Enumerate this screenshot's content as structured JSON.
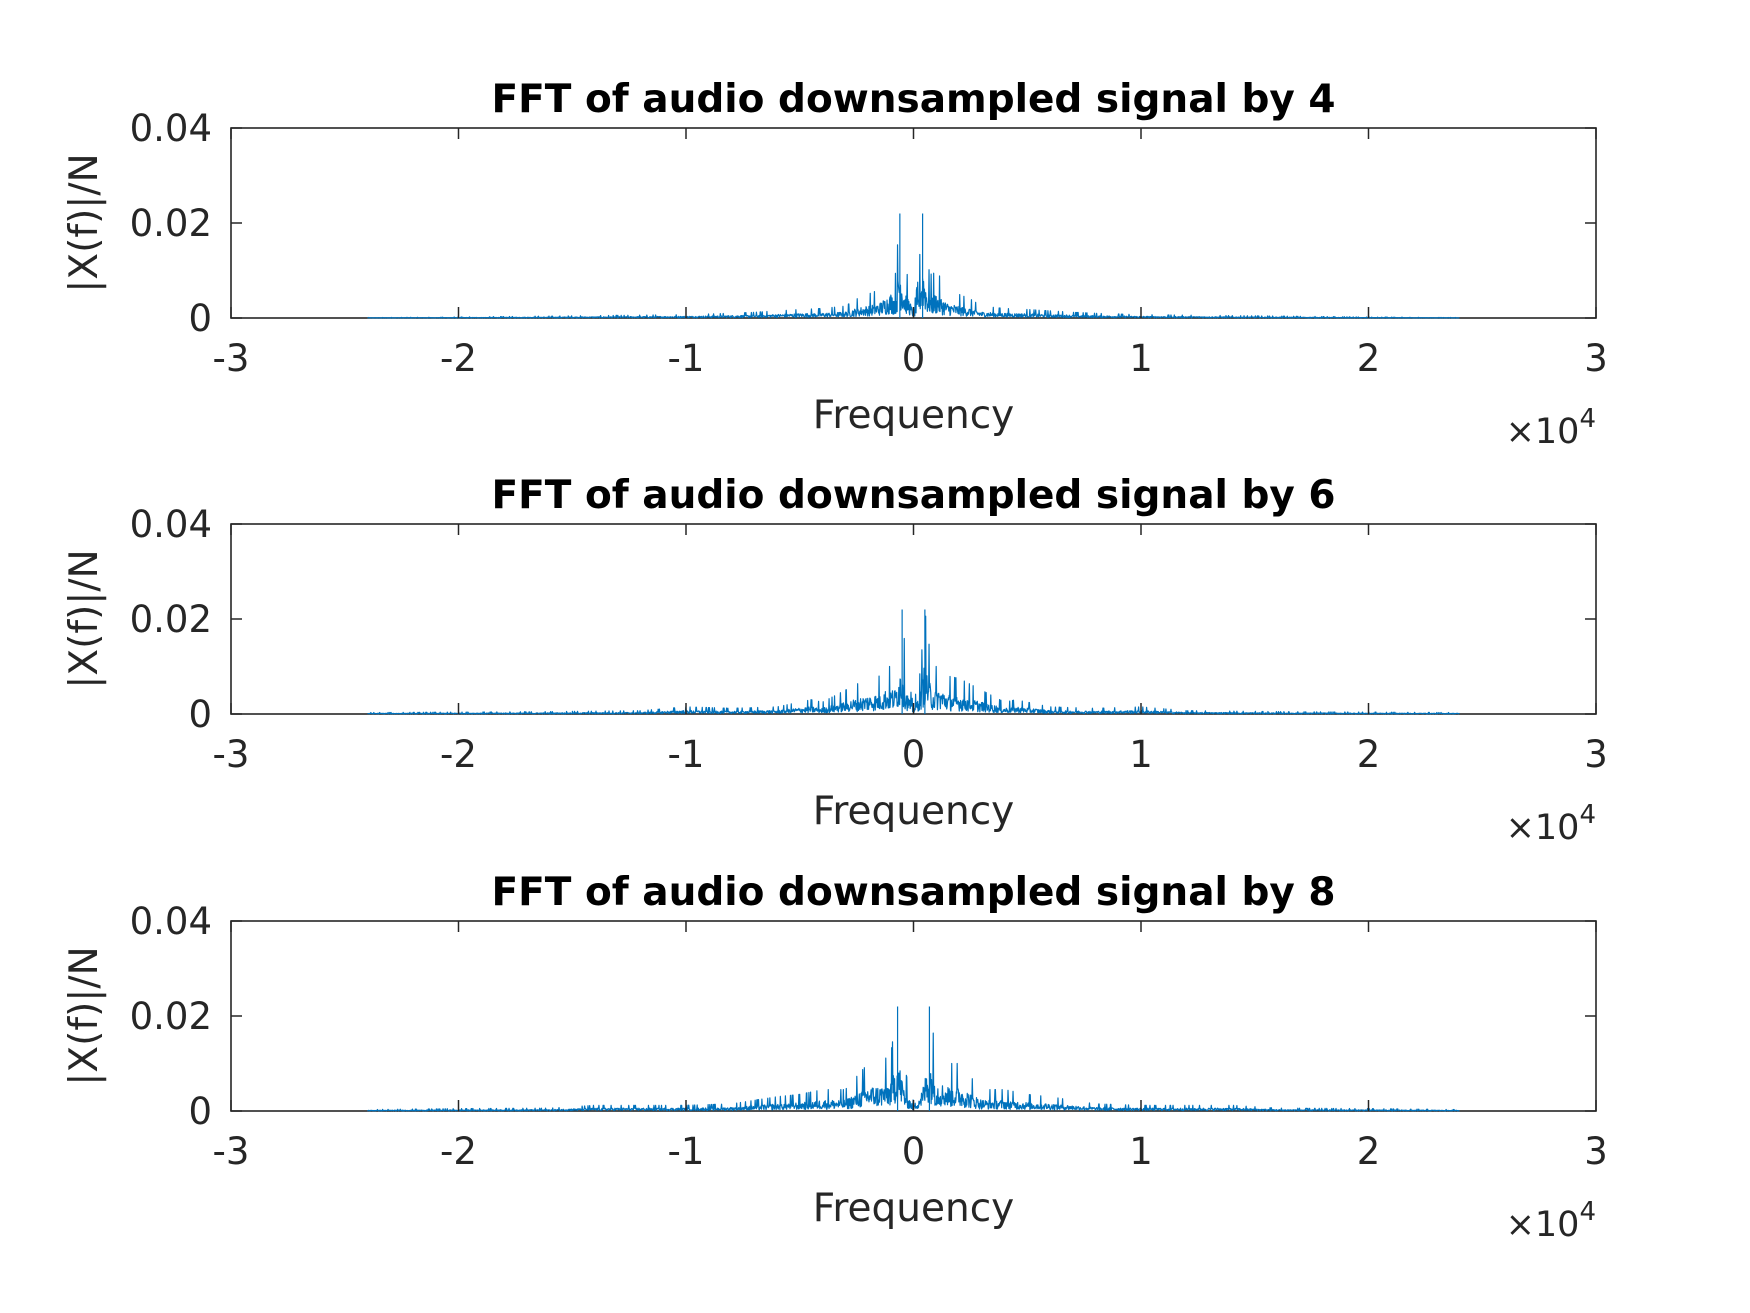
{
  "chart_data": [
    {
      "type": "line",
      "title": "FFT of audio downsampled signal by 4",
      "xlabel": "Frequency",
      "ylabel": "|X(f)|/N",
      "x_exponent_base": "×10",
      "x_exponent": "4",
      "xlim": [
        -3,
        3
      ],
      "ylim": [
        0,
        0.04
      ],
      "xticks": [
        "-3",
        "-2",
        "-1",
        "0",
        "1",
        "2",
        "3"
      ],
      "yticks": [
        "0",
        "0.02",
        "0.04"
      ],
      "xtick_values": [
        -3,
        -2,
        -1,
        0,
        1,
        2,
        3
      ],
      "ytick_values": [
        0,
        0.02,
        0.04
      ],
      "grid": false,
      "series_color": "#0072BD",
      "series": [
        {
          "x": [
            -2.4,
            -2.0,
            -1.6,
            -1.2,
            -1.0,
            -0.8,
            -0.7,
            -0.6,
            -0.5,
            -0.4,
            -0.3,
            -0.25,
            -0.2,
            -0.15,
            -0.1,
            -0.08,
            -0.06,
            -0.04,
            -0.02,
            0.0,
            0.02,
            0.04,
            0.06,
            0.08,
            0.1,
            0.15,
            0.2,
            0.25,
            0.3,
            0.4,
            0.5,
            0.6,
            0.7,
            0.8,
            1.0,
            1.2,
            1.6,
            2.0,
            2.4
          ],
          "y": [
            0.0001,
            0.0002,
            0.0004,
            0.0006,
            0.0007,
            0.001,
            0.0012,
            0.0015,
            0.0018,
            0.002,
            0.0025,
            0.004,
            0.005,
            0.006,
            0.01,
            0.009,
            0.022,
            0.011,
            0.008,
            0.002,
            0.008,
            0.022,
            0.011,
            0.009,
            0.01,
            0.006,
            0.005,
            0.004,
            0.0025,
            0.002,
            0.0018,
            0.0015,
            0.0012,
            0.001,
            0.0007,
            0.0006,
            0.0004,
            0.0002,
            0.0001
          ]
        }
      ]
    },
    {
      "type": "line",
      "title": "FFT of audio downsampled signal by 6",
      "xlabel": "Frequency",
      "ylabel": "|X(f)|/N",
      "x_exponent_base": "×10",
      "x_exponent": "4",
      "xlim": [
        -3,
        3
      ],
      "ylim": [
        0,
        0.04
      ],
      "xticks": [
        "-3",
        "-2",
        "-1",
        "0",
        "1",
        "2",
        "3"
      ],
      "yticks": [
        "0",
        "0.02",
        "0.04"
      ],
      "xtick_values": [
        -3,
        -2,
        -1,
        0,
        1,
        2,
        3
      ],
      "ytick_values": [
        0,
        0.02,
        0.04
      ],
      "grid": false,
      "series_color": "#0072BD",
      "series": [
        {
          "x": [
            -2.4,
            -2.0,
            -1.6,
            -1.2,
            -1.0,
            -0.8,
            -0.6,
            -0.45,
            -0.4,
            -0.3,
            -0.2,
            -0.15,
            -0.12,
            -0.08,
            -0.05,
            -0.03,
            0.0,
            0.03,
            0.05,
            0.08,
            0.12,
            0.15,
            0.2,
            0.3,
            0.4,
            0.45,
            0.6,
            0.8,
            1.0,
            1.2,
            1.6,
            2.0,
            2.4
          ],
          "y": [
            0.0003,
            0.0004,
            0.0005,
            0.0007,
            0.0015,
            0.0012,
            0.0015,
            0.003,
            0.0025,
            0.005,
            0.0075,
            0.008,
            0.01,
            0.01,
            0.022,
            0.009,
            0.002,
            0.009,
            0.022,
            0.01,
            0.01,
            0.008,
            0.0075,
            0.005,
            0.0025,
            0.003,
            0.0015,
            0.0012,
            0.0015,
            0.0007,
            0.0005,
            0.0004,
            0.0003
          ]
        }
      ]
    },
    {
      "type": "line",
      "title": "FFT of audio downsampled signal by 8",
      "xlabel": "Frequency",
      "ylabel": "|X(f)|/N",
      "x_exponent_base": "×10",
      "x_exponent": "4",
      "xlim": [
        -3,
        3
      ],
      "ylim": [
        0,
        0.04
      ],
      "xticks": [
        "-3",
        "-2",
        "-1",
        "0",
        "1",
        "2",
        "3"
      ],
      "yticks": [
        "0",
        "0.02",
        "0.04"
      ],
      "xtick_values": [
        -3,
        -2,
        -1,
        0,
        1,
        2,
        3
      ],
      "ytick_values": [
        0,
        0.02,
        0.04
      ],
      "grid": false,
      "series_color": "#0072BD",
      "series": [
        {
          "x": [
            -2.4,
            -2.0,
            -1.6,
            -1.4,
            -1.2,
            -1.0,
            -0.8,
            -0.6,
            -0.5,
            -0.4,
            -0.3,
            -0.2,
            -0.15,
            -0.1,
            -0.07,
            -0.04,
            0.0,
            0.04,
            0.07,
            0.1,
            0.15,
            0.2,
            0.3,
            0.4,
            0.5,
            0.6,
            0.8,
            1.0,
            1.2,
            1.4,
            1.6,
            2.0,
            2.4
          ],
          "y": [
            0.0003,
            0.0005,
            0.0006,
            0.0012,
            0.0012,
            0.0012,
            0.0015,
            0.003,
            0.0035,
            0.0045,
            0.0045,
            0.01,
            0.01,
            0.012,
            0.022,
            0.009,
            0.002,
            0.009,
            0.022,
            0.012,
            0.01,
            0.01,
            0.0045,
            0.0045,
            0.0035,
            0.003,
            0.0015,
            0.0012,
            0.0012,
            0.0012,
            0.0006,
            0.0005,
            0.0003
          ]
        }
      ]
    }
  ]
}
